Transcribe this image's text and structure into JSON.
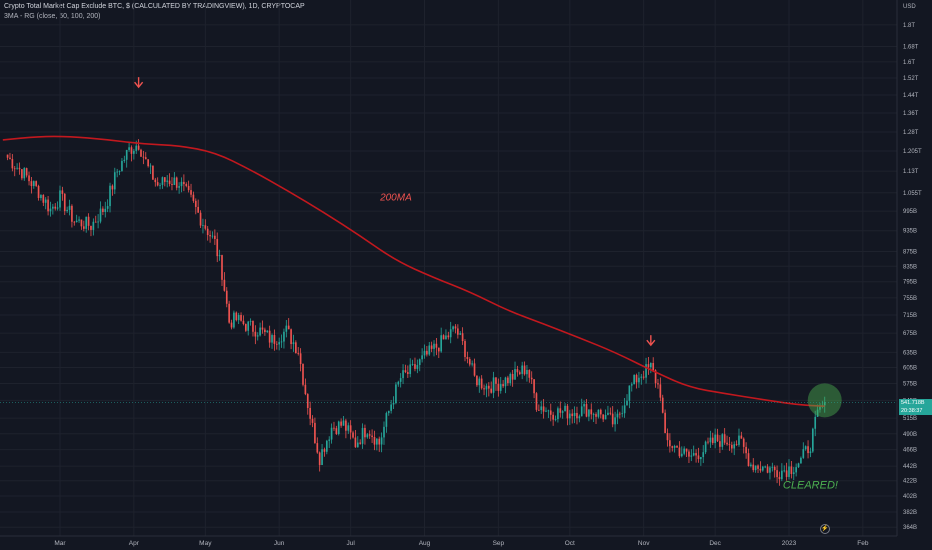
{
  "header": {
    "title": "Crypto Total Market Cap Exclude BTC, $ (CALCULATED BY TRADINGVIEW), 1D, CRYPTOCAP",
    "indicator": "3MA - RG (close, 50, 100, 200)"
  },
  "price_label": {
    "value": "541.718B",
    "countdown": "20:38:37"
  },
  "colors": {
    "background": "#131722",
    "grid": "#1e222d",
    "up": "#26a69a",
    "down": "#ef5350",
    "ma": "#c2181e",
    "annotation": "#ef5350",
    "cleared": "#4caf50"
  },
  "chart_data": {
    "type": "candlestick",
    "symbol": "Crypto Total Market Cap Exclude BTC",
    "timeframe": "1D",
    "currency": "USD",
    "y_scale": "log",
    "ylabel": "USD",
    "ylim": [
      358,
      2000
    ],
    "y_ticks": [
      {
        "value": 1800,
        "label": "1.8T"
      },
      {
        "value": 1680,
        "label": "1.68T"
      },
      {
        "value": 1600,
        "label": "1.6T"
      },
      {
        "value": 1520,
        "label": "1.52T"
      },
      {
        "value": 1440,
        "label": "1.44T"
      },
      {
        "value": 1360,
        "label": "1.36T"
      },
      {
        "value": 1280,
        "label": "1.28T"
      },
      {
        "value": 1205,
        "label": "1.205T"
      },
      {
        "value": 1130,
        "label": "1.13T"
      },
      {
        "value": 1055,
        "label": "1.055T"
      },
      {
        "value": 995,
        "label": "995B"
      },
      {
        "value": 935,
        "label": "935B"
      },
      {
        "value": 875,
        "label": "875B"
      },
      {
        "value": 835,
        "label": "835B"
      },
      {
        "value": 795,
        "label": "795B"
      },
      {
        "value": 755,
        "label": "755B"
      },
      {
        "value": 715,
        "label": "715B"
      },
      {
        "value": 675,
        "label": "675B"
      },
      {
        "value": 635,
        "label": "635B"
      },
      {
        "value": 605,
        "label": "605B"
      },
      {
        "value": 575,
        "label": "575B"
      },
      {
        "value": 545,
        "label": "545B"
      },
      {
        "value": 515,
        "label": "515B"
      },
      {
        "value": 490,
        "label": "490B"
      },
      {
        "value": 466,
        "label": "466B"
      },
      {
        "value": 442,
        "label": "442B"
      },
      {
        "value": 422,
        "label": "422B"
      },
      {
        "value": 402,
        "label": "402B"
      },
      {
        "value": 382,
        "label": "382B"
      },
      {
        "value": 364,
        "label": "364B"
      }
    ],
    "x_ticks": [
      "Mar",
      "Apr",
      "May",
      "Jun",
      "Jul",
      "Aug",
      "Sep",
      "Oct",
      "Nov",
      "Dec",
      "2023",
      "Feb"
    ],
    "close_series": {
      "name": "Close (daily, Feb 2022 – Jan 2023)",
      "key_points": [
        {
          "date": "2022-02-07",
          "value": 1180
        },
        {
          "date": "2022-02-14",
          "value": 1120
        },
        {
          "date": "2022-02-20",
          "value": 1060
        },
        {
          "date": "2022-02-25",
          "value": 1000
        },
        {
          "date": "2022-03-01",
          "value": 1040
        },
        {
          "date": "2022-03-07",
          "value": 965
        },
        {
          "date": "2022-03-14",
          "value": 950
        },
        {
          "date": "2022-03-20",
          "value": 1010
        },
        {
          "date": "2022-03-25",
          "value": 1130
        },
        {
          "date": "2022-03-30",
          "value": 1210
        },
        {
          "date": "2022-04-03",
          "value": 1235
        },
        {
          "date": "2022-04-07",
          "value": 1140
        },
        {
          "date": "2022-04-11",
          "value": 1080
        },
        {
          "date": "2022-04-15",
          "value": 1100
        },
        {
          "date": "2022-04-20",
          "value": 1090
        },
        {
          "date": "2022-04-25",
          "value": 1030
        },
        {
          "date": "2022-04-30",
          "value": 960
        },
        {
          "date": "2022-05-05",
          "value": 900
        },
        {
          "date": "2022-05-08",
          "value": 820
        },
        {
          "date": "2022-05-11",
          "value": 700
        },
        {
          "date": "2022-05-14",
          "value": 705
        },
        {
          "date": "2022-05-19",
          "value": 690
        },
        {
          "date": "2022-05-24",
          "value": 680
        },
        {
          "date": "2022-05-29",
          "value": 660
        },
        {
          "date": "2022-06-04",
          "value": 680
        },
        {
          "date": "2022-06-09",
          "value": 640
        },
        {
          "date": "2022-06-12",
          "value": 560
        },
        {
          "date": "2022-06-15",
          "value": 500
        },
        {
          "date": "2022-06-18",
          "value": 455
        },
        {
          "date": "2022-06-23",
          "value": 500
        },
        {
          "date": "2022-06-28",
          "value": 505
        },
        {
          "date": "2022-07-03",
          "value": 475
        },
        {
          "date": "2022-07-08",
          "value": 500
        },
        {
          "date": "2022-07-13",
          "value": 475
        },
        {
          "date": "2022-07-18",
          "value": 540
        },
        {
          "date": "2022-07-22",
          "value": 585
        },
        {
          "date": "2022-07-27",
          "value": 600
        },
        {
          "date": "2022-08-01",
          "value": 625
        },
        {
          "date": "2022-08-08",
          "value": 655
        },
        {
          "date": "2022-08-14",
          "value": 685
        },
        {
          "date": "2022-08-18",
          "value": 640
        },
        {
          "date": "2022-08-22",
          "value": 585
        },
        {
          "date": "2022-08-27",
          "value": 570
        },
        {
          "date": "2022-09-01",
          "value": 575
        },
        {
          "date": "2022-09-08",
          "value": 590
        },
        {
          "date": "2022-09-13",
          "value": 605
        },
        {
          "date": "2022-09-17",
          "value": 540
        },
        {
          "date": "2022-09-23",
          "value": 525
        },
        {
          "date": "2022-10-01",
          "value": 525
        },
        {
          "date": "2022-10-08",
          "value": 530
        },
        {
          "date": "2022-10-15",
          "value": 520
        },
        {
          "date": "2022-10-20",
          "value": 505
        },
        {
          "date": "2022-10-26",
          "value": 565
        },
        {
          "date": "2022-10-30",
          "value": 590
        },
        {
          "date": "2022-11-04",
          "value": 605
        },
        {
          "date": "2022-11-08",
          "value": 560
        },
        {
          "date": "2022-11-10",
          "value": 480
        },
        {
          "date": "2022-11-14",
          "value": 470
        },
        {
          "date": "2022-11-20",
          "value": 455
        },
        {
          "date": "2022-11-26",
          "value": 465
        },
        {
          "date": "2022-12-01",
          "value": 480
        },
        {
          "date": "2022-12-06",
          "value": 480
        },
        {
          "date": "2022-12-12",
          "value": 475
        },
        {
          "date": "2022-12-16",
          "value": 445
        },
        {
          "date": "2022-12-22",
          "value": 440
        },
        {
          "date": "2022-12-28",
          "value": 435
        },
        {
          "date": "2023-01-02",
          "value": 440
        },
        {
          "date": "2023-01-06",
          "value": 450
        },
        {
          "date": "2023-01-10",
          "value": 475
        },
        {
          "date": "2023-01-13",
          "value": 520
        },
        {
          "date": "2023-01-16",
          "value": 542
        }
      ]
    },
    "moving_average": {
      "name": "200MA",
      "color": "#c2181e",
      "points": [
        {
          "date": "2022-02-05",
          "value": 1248
        },
        {
          "date": "2022-02-20",
          "value": 1262
        },
        {
          "date": "2022-03-05",
          "value": 1262
        },
        {
          "date": "2022-03-20",
          "value": 1250
        },
        {
          "date": "2022-04-05",
          "value": 1232
        },
        {
          "date": "2022-04-20",
          "value": 1226
        },
        {
          "date": "2022-05-05",
          "value": 1200
        },
        {
          "date": "2022-05-20",
          "value": 1135
        },
        {
          "date": "2022-06-05",
          "value": 1060
        },
        {
          "date": "2022-06-20",
          "value": 990
        },
        {
          "date": "2022-07-05",
          "value": 920
        },
        {
          "date": "2022-07-20",
          "value": 850
        },
        {
          "date": "2022-08-05",
          "value": 805
        },
        {
          "date": "2022-08-20",
          "value": 770
        },
        {
          "date": "2022-09-05",
          "value": 725
        },
        {
          "date": "2022-09-20",
          "value": 695
        },
        {
          "date": "2022-10-05",
          "value": 665
        },
        {
          "date": "2022-10-20",
          "value": 635
        },
        {
          "date": "2022-11-05",
          "value": 598
        },
        {
          "date": "2022-11-20",
          "value": 568
        },
        {
          "date": "2022-12-05",
          "value": 557
        },
        {
          "date": "2022-12-20",
          "value": 547
        },
        {
          "date": "2023-01-05",
          "value": 537
        },
        {
          "date": "2023-01-16",
          "value": 535
        }
      ]
    },
    "annotations": [
      {
        "text": "200MA",
        "date": "2022-07-20",
        "value": 1030,
        "color": "#ef5350"
      },
      {
        "text": "CLEARED!",
        "date": "2023-01-10",
        "value": 412,
        "color": "#4caf50"
      },
      {
        "type": "arrow-down",
        "date": "2022-04-03",
        "value": 1500,
        "color": "#ef5350"
      },
      {
        "type": "arrow-down",
        "date": "2022-11-04",
        "value": 660,
        "color": "#ef5350"
      },
      {
        "type": "circle",
        "date": "2023-01-16",
        "value": 545,
        "color": "#4caf50"
      }
    ],
    "last_price": 541.718
  }
}
